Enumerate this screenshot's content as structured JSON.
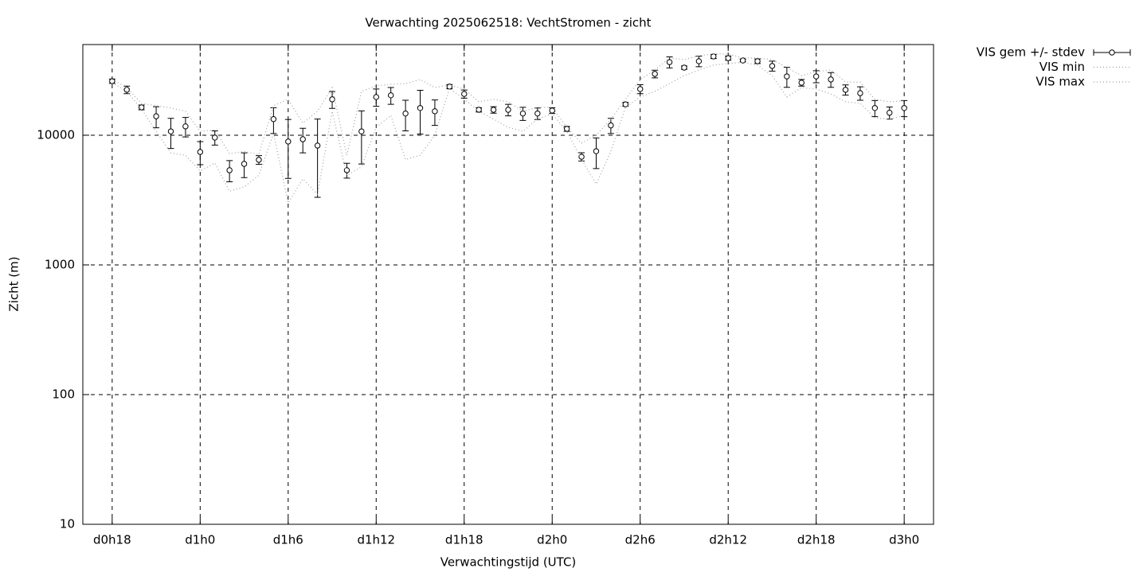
{
  "chart_data": {
    "type": "errorbar",
    "title": "Verwachting 2025062518: VechtStromen - zicht",
    "xlabel": "Verwachtingstijd (UTC)",
    "ylabel": "Zicht (m)",
    "x": [
      18,
      19,
      20,
      21,
      22,
      23,
      24,
      25,
      26,
      27,
      28,
      29,
      30,
      31,
      32,
      33,
      34,
      35,
      36,
      37,
      38,
      39,
      40,
      41,
      42,
      43,
      44,
      45,
      46,
      47,
      48,
      49,
      50,
      51,
      52,
      53,
      54,
      55,
      56,
      57,
      58,
      59,
      60,
      61,
      62,
      63,
      64,
      65,
      66,
      67,
      68,
      69,
      70,
      71,
      72
    ],
    "xlim": [
      16,
      74
    ],
    "xticks": [
      {
        "value": 18,
        "label": "d0h18"
      },
      {
        "value": 24,
        "label": "d1h0"
      },
      {
        "value": 30,
        "label": "d1h6"
      },
      {
        "value": 36,
        "label": "d1h12"
      },
      {
        "value": 42,
        "label": "d1h18"
      },
      {
        "value": 48,
        "label": "d2h0"
      },
      {
        "value": 54,
        "label": "d2h6"
      },
      {
        "value": 60,
        "label": "d2h12"
      },
      {
        "value": 66,
        "label": "d2h18"
      },
      {
        "value": 72,
        "label": "d3h0"
      }
    ],
    "ylim": [
      10,
      50000
    ],
    "yticks": [
      10,
      100,
      1000,
      10000
    ],
    "log_y": true,
    "grid": true,
    "legend": "outside-top-right",
    "series": [
      {
        "name": "VIS gem +/- stdev",
        "color": "#000000",
        "style": "errorbar",
        "values": [
          26100,
          22400,
          16400,
          14000,
          10700,
          11700,
          7430,
          9590,
          5370,
          6010,
          6460,
          13300,
          8940,
          9310,
          8320,
          18900,
          5370,
          10700,
          19700,
          20300,
          14700,
          16200,
          15300,
          23700,
          20800,
          15700,
          15700,
          15700,
          14700,
          14700,
          15500,
          11200,
          6820,
          7530,
          11900,
          17300,
          22700,
          29700,
          36600,
          33200,
          37200,
          40500,
          39300,
          37700,
          37200,
          34200,
          28400,
          25400,
          28400,
          26900,
          22400,
          21100,
          16200,
          14900,
          16200
        ],
        "errors": [
          1000,
          1500,
          700,
          2600,
          2800,
          2000,
          1500,
          1200,
          1000,
          1300,
          500,
          3000,
          4300,
          2000,
          5000,
          2800,
          700,
          4700,
          3000,
          3000,
          3900,
          6000,
          3400,
          900,
          1500,
          600,
          900,
          1600,
          1700,
          1500,
          800,
          500,
          500,
          2000,
          1600,
          600,
          1800,
          2000,
          3600,
          1000,
          3500,
          1500,
          1500,
          1000,
          1500,
          3000,
          5000,
          1500,
          3000,
          3500,
          2000,
          2500,
          2300,
          1600,
          2300
        ]
      },
      {
        "name": "VIS min",
        "color": "#a0a0a0",
        "style": "dotted",
        "values": [
          25400,
          21800,
          15900,
          10700,
          7300,
          7000,
          5300,
          6100,
          3700,
          4000,
          4900,
          10300,
          3000,
          4600,
          3500,
          15300,
          4900,
          5700,
          11500,
          14200,
          6500,
          7000,
          10000,
          23000,
          18900,
          15300,
          13300,
          11500,
          10700,
          13300,
          14700,
          10700,
          6500,
          4200,
          7500,
          16400,
          19700,
          21800,
          25000,
          28800,
          31800,
          34700,
          35700,
          36500,
          34700,
          28800,
          19700,
          23300,
          22700,
          20800,
          18100,
          17600,
          13600,
          13300,
          14200
        ]
      },
      {
        "name": "VIS max",
        "color": "#a0a0a0",
        "style": "dotted",
        "values": [
          26900,
          23300,
          17600,
          16900,
          16200,
          15300,
          10700,
          11000,
          7200,
          7500,
          7100,
          16900,
          18900,
          12400,
          15300,
          23300,
          7000,
          21800,
          24000,
          24700,
          25000,
          26900,
          23300,
          24400,
          22700,
          18100,
          18900,
          18100,
          15300,
          16400,
          16400,
          11500,
          8700,
          10000,
          13300,
          18900,
          26900,
          31800,
          39400,
          38300,
          41000,
          42300,
          42300,
          39400,
          39400,
          38300,
          33200,
          28800,
          31000,
          31800,
          25700,
          25700,
          18900,
          18100,
          18400
        ]
      }
    ]
  }
}
